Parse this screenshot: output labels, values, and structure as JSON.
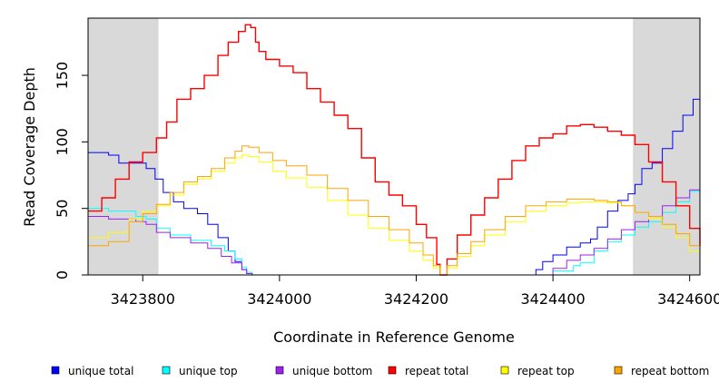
{
  "chart_data": {
    "type": "line",
    "title": "",
    "xlabel": "Coordinate in Reference Genome",
    "ylabel": "Read Coverage Depth",
    "xlim": [
      3423720,
      3424615
    ],
    "ylim": [
      0,
      193
    ],
    "x_ticks": [
      3423800,
      3424000,
      3424200,
      3424400,
      3424600
    ],
    "x_tick_labels": [
      "3423800",
      "3424000",
      "3424200",
      "3424400",
      "3424600"
    ],
    "y_ticks": [
      0,
      50,
      100,
      150
    ],
    "y_tick_labels": [
      "0",
      "50",
      "100",
      "150"
    ],
    "shaded_regions": [
      [
        3423720,
        3423823
      ],
      [
        3424517,
        3424615
      ]
    ],
    "shade_color": "#d9d9d9",
    "series": [
      {
        "name": "unique total",
        "color": "#0000ff",
        "x": [
          3423720,
          3423750,
          3423765,
          3423785,
          3423805,
          3423818,
          3423830,
          3423845,
          3423860,
          3423880,
          3423895,
          3423910,
          3423925,
          3423935,
          3423945,
          3423952,
          3423960,
          3424360,
          3424375,
          3424385,
          3424400,
          3424420,
          3424440,
          3424455,
          3424465,
          3424480,
          3424495,
          3424510,
          3424520,
          3424530,
          3424545,
          3424560,
          3424575,
          3424590,
          3424605,
          3424615
        ],
        "y": [
          92,
          90,
          84,
          84,
          80,
          72,
          62,
          55,
          50,
          46,
          38,
          28,
          18,
          10,
          4,
          1,
          0,
          0,
          4,
          10,
          15,
          21,
          24,
          27,
          36,
          48,
          56,
          61,
          68,
          80,
          84,
          95,
          108,
          120,
          132,
          142
        ]
      },
      {
        "name": "unique top",
        "color": "#00ffff",
        "x": [
          3423720,
          3423750,
          3423790,
          3423805,
          3423820,
          3423840,
          3423870,
          3423900,
          3423920,
          3423935,
          3423945,
          3423952,
          3423960,
          3424380,
          3424400,
          3424430,
          3424440,
          3424460,
          3424480,
          3424500,
          3424520,
          3424540,
          3424560,
          3424580,
          3424600,
          3424615
        ],
        "y": [
          50,
          48,
          44,
          42,
          35,
          30,
          26,
          22,
          18,
          12,
          6,
          2,
          0,
          0,
          3,
          7,
          9,
          18,
          25,
          30,
          36,
          40,
          47,
          55,
          63,
          75
        ]
      },
      {
        "name": "unique bottom",
        "color": "#a020f0",
        "x": [
          3423720,
          3423750,
          3423790,
          3423805,
          3423820,
          3423840,
          3423870,
          3423895,
          3423915,
          3423930,
          3423945,
          3423952,
          3423960,
          3424380,
          3424400,
          3424420,
          3424440,
          3424460,
          3424480,
          3424500,
          3424520,
          3424540,
          3424560,
          3424580,
          3424600,
          3424615
        ],
        "y": [
          44,
          42,
          40,
          38,
          32,
          28,
          24,
          20,
          14,
          9,
          4,
          1,
          0,
          0,
          5,
          11,
          15,
          20,
          27,
          34,
          40,
          44,
          52,
          58,
          64,
          68
        ]
      },
      {
        "name": "repeat total",
        "color": "#ff0000",
        "x": [
          3423720,
          3423740,
          3423760,
          3423780,
          3423800,
          3423820,
          3423835,
          3423850,
          3423870,
          3423890,
          3423910,
          3423925,
          3423940,
          3423950,
          3423958,
          3423965,
          3423970,
          3423980,
          3424000,
          3424020,
          3424040,
          3424060,
          3424080,
          3424100,
          3424120,
          3424140,
          3424160,
          3424180,
          3424200,
          3424215,
          3424230,
          3424235,
          3424245,
          3424260,
          3424280,
          3424300,
          3424320,
          3424340,
          3424360,
          3424380,
          3424400,
          3424420,
          3424440,
          3424460,
          3424480,
          3424500,
          3424520,
          3424540,
          3424560,
          3424580,
          3424600,
          3424615
        ],
        "y": [
          48,
          58,
          72,
          85,
          92,
          103,
          115,
          132,
          140,
          150,
          165,
          175,
          183,
          188,
          186,
          175,
          168,
          162,
          157,
          152,
          140,
          130,
          120,
          110,
          88,
          70,
          60,
          52,
          38,
          28,
          8,
          0,
          12,
          30,
          45,
          58,
          72,
          86,
          97,
          103,
          106,
          112,
          113,
          111,
          108,
          105,
          98,
          85,
          70,
          52,
          35,
          22
        ]
      },
      {
        "name": "repeat top",
        "color": "#ffff00",
        "x": [
          3423720,
          3423750,
          3423780,
          3423800,
          3423820,
          3423840,
          3423860,
          3423880,
          3423900,
          3423920,
          3423935,
          3423945,
          3423955,
          3423970,
          3423990,
          3424010,
          3424040,
          3424070,
          3424100,
          3424130,
          3424160,
          3424190,
          3424210,
          3424225,
          3424235,
          3424245,
          3424260,
          3424280,
          3424300,
          3424330,
          3424360,
          3424390,
          3424420,
          3424440,
          3424460,
          3424480,
          3424500,
          3424520,
          3424540,
          3424560,
          3424580,
          3424600,
          3424615
        ],
        "y": [
          28,
          32,
          42,
          48,
          52,
          60,
          68,
          72,
          78,
          84,
          88,
          90,
          89,
          85,
          78,
          73,
          66,
          56,
          45,
          35,
          26,
          18,
          11,
          5,
          0,
          5,
          14,
          22,
          30,
          40,
          48,
          52,
          54,
          55,
          55,
          54,
          52,
          47,
          42,
          36,
          28,
          18,
          10
        ]
      },
      {
        "name": "repeat bottom",
        "color": "#ffa500",
        "x": [
          3423720,
          3423750,
          3423780,
          3423800,
          3423820,
          3423840,
          3423860,
          3423880,
          3423900,
          3423920,
          3423935,
          3423945,
          3423955,
          3423970,
          3423990,
          3424010,
          3424040,
          3424070,
          3424100,
          3424130,
          3424160,
          3424190,
          3424210,
          3424225,
          3424235,
          3424245,
          3424260,
          3424280,
          3424300,
          3424330,
          3424360,
          3424390,
          3424420,
          3424440,
          3424460,
          3424480,
          3424500,
          3424520,
          3424540,
          3424560,
          3424580,
          3424600,
          3424615
        ],
        "y": [
          22,
          25,
          40,
          46,
          53,
          62,
          70,
          74,
          80,
          88,
          93,
          97,
          96,
          92,
          86,
          82,
          75,
          65,
          56,
          44,
          34,
          24,
          15,
          7,
          0,
          7,
          16,
          25,
          34,
          44,
          52,
          55,
          57,
          57,
          56,
          55,
          52,
          47,
          44,
          38,
          31,
          22,
          15
        ]
      }
    ],
    "legend_position": "bottom"
  }
}
